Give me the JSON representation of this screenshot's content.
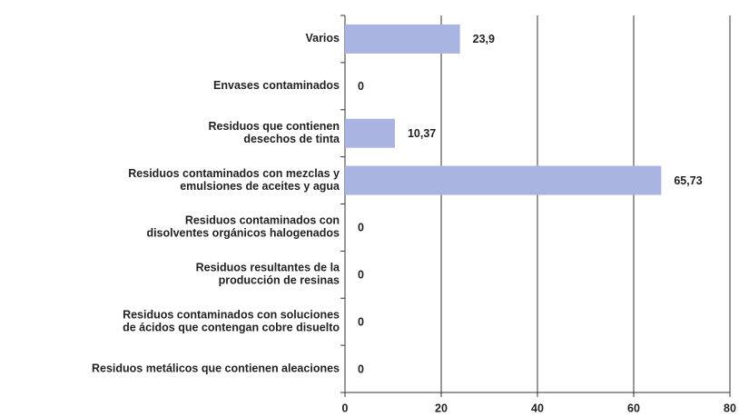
{
  "chart_data": {
    "type": "bar",
    "orientation": "horizontal",
    "categories": [
      [
        "Varios"
      ],
      [
        "Envases contaminados"
      ],
      [
        "Residuos que contienen",
        "desechos de tinta"
      ],
      [
        "Residuos contaminados con mezclas y",
        "emulsiones de aceites y agua"
      ],
      [
        "Residuos contaminados con",
        "disolventes orgánicos halogenados"
      ],
      [
        "Residuos resultantes de la",
        "producción de resinas"
      ],
      [
        "Residuos contaminados con soluciones",
        "de ácidos que contengan cobre disuelto"
      ],
      [
        "Residuos metálicos que contienen aleaciones"
      ]
    ],
    "values": [
      23.9,
      0,
      10.37,
      65.73,
      0,
      0,
      0,
      0
    ],
    "value_labels": [
      "23,9",
      "0",
      "10,37",
      "65,73",
      "0",
      "0",
      "0",
      "0"
    ],
    "color": "#a9b4e0",
    "xlim": [
      0,
      80
    ],
    "xticks": [
      0,
      20,
      40,
      60,
      80
    ],
    "grid": true
  }
}
